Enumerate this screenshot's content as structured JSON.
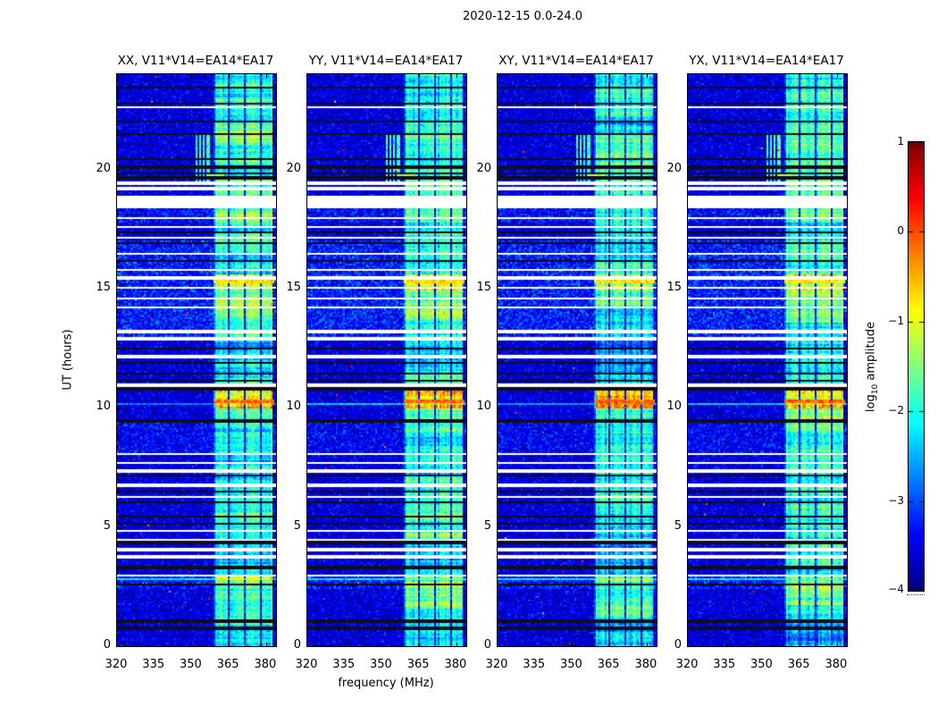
{
  "chart_data": {
    "type": "heatmap",
    "title": "2020-12-15 0.0-24.0",
    "x": {
      "label": "frequency (MHz)",
      "range": [
        320,
        384
      ],
      "ticks": [
        320,
        335,
        350,
        365,
        380
      ]
    },
    "y": {
      "label": "UT (hours)",
      "range": [
        0,
        24
      ],
      "ticks": [
        0,
        5,
        10,
        15,
        20
      ]
    },
    "z": {
      "label_parts": {
        "pre": "log",
        "sub": "10",
        "post": " amplitude"
      },
      "range": [
        -4,
        1
      ],
      "ticks": [
        1,
        0,
        -1,
        -2,
        -3,
        -4
      ],
      "tick_labels": [
        "1",
        "0",
        "−1",
        "−2",
        "−3",
        "−4"
      ],
      "colormap": "jet"
    },
    "panels": [
      {
        "label": "xx",
        "title": "XX, V11*V14=EA14*EA17",
        "seed": 11,
        "band_gain": 0.0,
        "left_line_gain": -0.25
      },
      {
        "label": "yy",
        "title": "YY, V11*V14=EA14*EA17",
        "seed": 23,
        "band_gain": 0.15,
        "left_line_gain": 0.15
      },
      {
        "label": "xy",
        "title": "XY, V11*V14=EA14*EA17",
        "seed": 37,
        "band_gain": -0.05,
        "left_line_gain": -0.1
      },
      {
        "label": "yx",
        "title": "YX, V11*V14=EA14*EA17",
        "seed": 51,
        "band_gain": 0.1,
        "left_line_gain": 0.1
      }
    ],
    "features": {
      "noise": {
        "base": -3.55,
        "sigma": 0.22
      },
      "noise_regions": [
        {
          "t0": 13.0,
          "t1": 17.0,
          "base": -3.25,
          "sigma": 0.3
        },
        {
          "t0": 8.0,
          "t1": 9.45,
          "base": -3.4,
          "sigma": 0.26
        },
        {
          "t0": 2.4,
          "t1": 3.0,
          "base": -3.3,
          "sigma": 0.3
        },
        {
          "t0": 17.8,
          "t1": 18.45,
          "base": -3.35,
          "sigma": 0.28
        }
      ],
      "band": {
        "f0": 358.8,
        "f1": 382.6,
        "lanes": [
          [
            364.6,
            365.6
          ],
          [
            370.9,
            371.9
          ],
          [
            377.2,
            378.2
          ]
        ],
        "profile": [
          [
            0.0,
            0.9,
            -2.45
          ],
          [
            0.9,
            1.6,
            -2.15
          ],
          [
            1.6,
            2.4,
            -1.8
          ],
          [
            2.4,
            3.0,
            -1.6
          ],
          [
            3.0,
            4.2,
            -2.3
          ],
          [
            4.2,
            6.1,
            -2.0
          ],
          [
            6.1,
            8.1,
            -2.15
          ],
          [
            8.1,
            9.4,
            -2.0
          ],
          [
            9.4,
            10.0,
            -1.75
          ],
          [
            10.0,
            10.75,
            -0.6
          ],
          [
            10.75,
            11.5,
            -1.85
          ],
          [
            11.5,
            12.9,
            -2.4
          ],
          [
            12.9,
            13.6,
            -2.05
          ],
          [
            13.6,
            14.9,
            -1.7
          ],
          [
            14.9,
            15.6,
            -1.15
          ],
          [
            15.6,
            16.6,
            -2.2
          ],
          [
            16.6,
            17.8,
            -2.0
          ],
          [
            17.8,
            18.45,
            -1.75
          ],
          [
            18.45,
            19.3,
            -1.95
          ],
          [
            19.3,
            21.6,
            -1.9
          ],
          [
            21.6,
            24.0,
            -2.1
          ]
        ]
      },
      "hot_spots": [
        {
          "t": 19.75,
          "h": 0.12,
          "f0": 356.0,
          "f1": 363.0,
          "v": -1.25
        },
        {
          "t": 15.3,
          "h": 0.08,
          "f0": 358.8,
          "f1": 383.0,
          "v": -0.8
        },
        {
          "t": 10.3,
          "h": 0.14,
          "f0": 358.8,
          "f1": 383.0,
          "v": -0.15
        }
      ],
      "white_gaps": [
        [
          22.62,
          0.06
        ],
        [
          19.42,
          0.1
        ],
        [
          19.2,
          0.1
        ],
        [
          18.65,
          0.48
        ],
        [
          17.95,
          0.1
        ],
        [
          17.6,
          0.1
        ],
        [
          17.15,
          0.1
        ],
        [
          16.45,
          0.12
        ],
        [
          15.8,
          0.1
        ],
        [
          15.45,
          0.08
        ],
        [
          15.05,
          0.08
        ],
        [
          14.6,
          0.1
        ],
        [
          14.2,
          0.08
        ],
        [
          13.2,
          0.12
        ],
        [
          12.9,
          0.08
        ],
        [
          12.15,
          0.08
        ],
        [
          10.95,
          0.1
        ],
        [
          8.05,
          0.12
        ],
        [
          7.7,
          0.08
        ],
        [
          7.35,
          0.08
        ],
        [
          6.75,
          0.1
        ],
        [
          6.25,
          0.1
        ],
        [
          4.85,
          0.08
        ],
        [
          4.45,
          0.08
        ],
        [
          4.05,
          0.08
        ],
        [
          3.75,
          0.08
        ],
        [
          2.95,
          0.1
        ]
      ],
      "black_lines": [
        23.45,
        22.75,
        22.0,
        21.5,
        20.45,
        20.1,
        19.85,
        19.65,
        17.35,
        16.9,
        16.15,
        12.5,
        12.2,
        11.9,
        11.45,
        11.15,
        10.8,
        9.45,
        7.15,
        6.5,
        6.05,
        5.45,
        5.15,
        4.35,
        3.3,
        2.6,
        1.05,
        0.75
      ],
      "cyan_rows": [
        {
          "t": 2.82,
          "h": 0.1,
          "v": -2.25
        },
        {
          "t": 10.17,
          "h": 0.07,
          "v": -2.5
        }
      ],
      "vlines": {
        "t0": 19.5,
        "t1": 21.55,
        "freqs": [
          351.8,
          353.4,
          355.0,
          356.6
        ]
      }
    }
  }
}
